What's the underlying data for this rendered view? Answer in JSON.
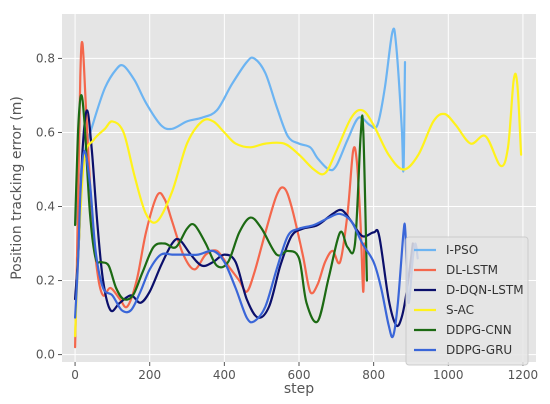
{
  "chart_data": {
    "type": "line",
    "title": "",
    "xlabel": "step",
    "ylabel": "Position tracking error (m)",
    "xlim": [
      -35,
      1235
    ],
    "ylim": [
      -0.02,
      0.92
    ],
    "xticks": [
      0,
      200,
      400,
      600,
      800,
      1000,
      1200
    ],
    "yticks": [
      0.0,
      0.2,
      0.4,
      0.6,
      0.8
    ],
    "xtick_labels": [
      "0",
      "200",
      "400",
      "600",
      "800",
      "1000",
      "1200"
    ],
    "ytick_labels": [
      "0.0",
      "0.2",
      "0.4",
      "0.6",
      "0.8"
    ],
    "grid": true,
    "background": "#e5e5e5",
    "legend_position": "lower-right",
    "series": [
      {
        "name": "I-PSO",
        "color": "#6cb4f2",
        "points": [
          [
            0,
            0.35
          ],
          [
            20,
            0.52
          ],
          [
            50,
            0.63
          ],
          [
            80,
            0.72
          ],
          [
            110,
            0.77
          ],
          [
            130,
            0.78
          ],
          [
            160,
            0.74
          ],
          [
            190,
            0.68
          ],
          [
            230,
            0.62
          ],
          [
            260,
            0.61
          ],
          [
            300,
            0.63
          ],
          [
            340,
            0.64
          ],
          [
            380,
            0.66
          ],
          [
            420,
            0.73
          ],
          [
            460,
            0.79
          ],
          [
            480,
            0.8
          ],
          [
            510,
            0.76
          ],
          [
            540,
            0.67
          ],
          [
            570,
            0.59
          ],
          [
            600,
            0.57
          ],
          [
            630,
            0.56
          ],
          [
            650,
            0.53
          ],
          [
            680,
            0.5
          ],
          [
            700,
            0.51
          ],
          [
            730,
            0.58
          ],
          [
            760,
            0.64
          ],
          [
            790,
            0.62
          ],
          [
            810,
            0.62
          ],
          [
            830,
            0.72
          ],
          [
            850,
            0.87
          ],
          [
            860,
            0.84
          ],
          [
            875,
            0.62
          ],
          [
            880,
            0.5
          ],
          [
            884,
            0.79
          ]
        ]
      },
      {
        "name": "DL-LSTM",
        "color": "#f4674c",
        "points": [
          [
            0,
            0.02
          ],
          [
            8,
            0.4
          ],
          [
            14,
            0.75
          ],
          [
            20,
            0.84
          ],
          [
            30,
            0.65
          ],
          [
            45,
            0.38
          ],
          [
            60,
            0.22
          ],
          [
            75,
            0.16
          ],
          [
            95,
            0.18
          ],
          [
            120,
            0.15
          ],
          [
            140,
            0.13
          ],
          [
            165,
            0.2
          ],
          [
            190,
            0.33
          ],
          [
            220,
            0.43
          ],
          [
            240,
            0.42
          ],
          [
            260,
            0.36
          ],
          [
            290,
            0.27
          ],
          [
            320,
            0.23
          ],
          [
            350,
            0.27
          ],
          [
            380,
            0.28
          ],
          [
            410,
            0.24
          ],
          [
            440,
            0.2
          ],
          [
            460,
            0.17
          ],
          [
            480,
            0.22
          ],
          [
            510,
            0.33
          ],
          [
            540,
            0.43
          ],
          [
            560,
            0.45
          ],
          [
            580,
            0.4
          ],
          [
            610,
            0.27
          ],
          [
            630,
            0.17
          ],
          [
            650,
            0.19
          ],
          [
            670,
            0.25
          ],
          [
            690,
            0.28
          ],
          [
            710,
            0.25
          ],
          [
            730,
            0.38
          ],
          [
            745,
            0.55
          ],
          [
            755,
            0.52
          ],
          [
            765,
            0.35
          ],
          [
            772,
            0.17
          ],
          [
            775,
            0.3
          ]
        ]
      },
      {
        "name": "D-DQN-LSTM",
        "color": "#0b0f6b",
        "points": [
          [
            0,
            0.15
          ],
          [
            10,
            0.3
          ],
          [
            20,
            0.55
          ],
          [
            32,
            0.66
          ],
          [
            45,
            0.55
          ],
          [
            60,
            0.35
          ],
          [
            75,
            0.2
          ],
          [
            95,
            0.12
          ],
          [
            120,
            0.14
          ],
          [
            150,
            0.16
          ],
          [
            175,
            0.14
          ],
          [
            200,
            0.17
          ],
          [
            230,
            0.24
          ],
          [
            260,
            0.3
          ],
          [
            280,
            0.31
          ],
          [
            310,
            0.27
          ],
          [
            340,
            0.24
          ],
          [
            370,
            0.25
          ],
          [
            400,
            0.27
          ],
          [
            430,
            0.25
          ],
          [
            460,
            0.15
          ],
          [
            490,
            0.1
          ],
          [
            520,
            0.13
          ],
          [
            550,
            0.24
          ],
          [
            580,
            0.32
          ],
          [
            610,
            0.34
          ],
          [
            650,
            0.35
          ],
          [
            690,
            0.38
          ],
          [
            715,
            0.39
          ],
          [
            740,
            0.36
          ],
          [
            770,
            0.32
          ],
          [
            800,
            0.33
          ],
          [
            815,
            0.32
          ],
          [
            840,
            0.15
          ],
          [
            860,
            0.08
          ],
          [
            875,
            0.1
          ],
          [
            890,
            0.18
          ],
          [
            905,
            0.3
          ]
        ]
      },
      {
        "name": "S-AC",
        "color": "#fff21b",
        "points": [
          [
            0,
            0.05
          ],
          [
            10,
            0.3
          ],
          [
            25,
            0.53
          ],
          [
            50,
            0.58
          ],
          [
            80,
            0.61
          ],
          [
            100,
            0.63
          ],
          [
            130,
            0.6
          ],
          [
            160,
            0.48
          ],
          [
            190,
            0.38
          ],
          [
            220,
            0.36
          ],
          [
            260,
            0.44
          ],
          [
            300,
            0.57
          ],
          [
            340,
            0.63
          ],
          [
            370,
            0.63
          ],
          [
            400,
            0.6
          ],
          [
            430,
            0.57
          ],
          [
            470,
            0.56
          ],
          [
            510,
            0.57
          ],
          [
            560,
            0.57
          ],
          [
            600,
            0.54
          ],
          [
            640,
            0.5
          ],
          [
            670,
            0.49
          ],
          [
            700,
            0.55
          ],
          [
            740,
            0.64
          ],
          [
            770,
            0.66
          ],
          [
            800,
            0.62
          ],
          [
            840,
            0.54
          ],
          [
            880,
            0.5
          ],
          [
            920,
            0.54
          ],
          [
            960,
            0.63
          ],
          [
            990,
            0.65
          ],
          [
            1020,
            0.62
          ],
          [
            1060,
            0.57
          ],
          [
            1100,
            0.59
          ],
          [
            1140,
            0.51
          ],
          [
            1160,
            0.56
          ],
          [
            1175,
            0.74
          ],
          [
            1185,
            0.73
          ],
          [
            1195,
            0.54
          ]
        ]
      },
      {
        "name": "DDPG-CNN",
        "color": "#1c6a13",
        "points": [
          [
            0,
            0.35
          ],
          [
            8,
            0.6
          ],
          [
            16,
            0.7
          ],
          [
            25,
            0.63
          ],
          [
            40,
            0.38
          ],
          [
            55,
            0.26
          ],
          [
            70,
            0.25
          ],
          [
            90,
            0.24
          ],
          [
            110,
            0.18
          ],
          [
            130,
            0.15
          ],
          [
            155,
            0.16
          ],
          [
            180,
            0.22
          ],
          [
            210,
            0.29
          ],
          [
            240,
            0.3
          ],
          [
            270,
            0.29
          ],
          [
            300,
            0.34
          ],
          [
            320,
            0.35
          ],
          [
            350,
            0.3
          ],
          [
            380,
            0.24
          ],
          [
            410,
            0.25
          ],
          [
            440,
            0.33
          ],
          [
            470,
            0.37
          ],
          [
            500,
            0.34
          ],
          [
            540,
            0.27
          ],
          [
            570,
            0.28
          ],
          [
            600,
            0.26
          ],
          [
            620,
            0.14
          ],
          [
            650,
            0.09
          ],
          [
            680,
            0.21
          ],
          [
            710,
            0.33
          ],
          [
            730,
            0.29
          ],
          [
            750,
            0.3
          ],
          [
            765,
            0.59
          ],
          [
            772,
            0.61
          ],
          [
            782,
            0.2
          ]
        ]
      },
      {
        "name": "DDPG-GRU",
        "color": "#3a66d8",
        "points": [
          [
            0,
            0.1
          ],
          [
            8,
            0.25
          ],
          [
            15,
            0.45
          ],
          [
            25,
            0.55
          ],
          [
            40,
            0.46
          ],
          [
            55,
            0.28
          ],
          [
            75,
            0.18
          ],
          [
            100,
            0.16
          ],
          [
            125,
            0.12
          ],
          [
            150,
            0.12
          ],
          [
            175,
            0.17
          ],
          [
            200,
            0.23
          ],
          [
            230,
            0.27
          ],
          [
            260,
            0.27
          ],
          [
            290,
            0.27
          ],
          [
            330,
            0.27
          ],
          [
            370,
            0.28
          ],
          [
            400,
            0.25
          ],
          [
            430,
            0.18
          ],
          [
            460,
            0.1
          ],
          [
            480,
            0.09
          ],
          [
            510,
            0.13
          ],
          [
            540,
            0.23
          ],
          [
            570,
            0.32
          ],
          [
            600,
            0.34
          ],
          [
            640,
            0.35
          ],
          [
            680,
            0.37
          ],
          [
            710,
            0.38
          ],
          [
            740,
            0.36
          ],
          [
            770,
            0.3
          ],
          [
            800,
            0.25
          ],
          [
            820,
            0.18
          ],
          [
            840,
            0.08
          ],
          [
            852,
            0.05
          ],
          [
            865,
            0.14
          ],
          [
            880,
            0.33
          ],
          [
            885,
            0.33
          ],
          [
            893,
            0.14
          ],
          [
            905,
            0.26
          ],
          [
            912,
            0.3
          ],
          [
            918,
            0.26
          ]
        ]
      }
    ]
  }
}
